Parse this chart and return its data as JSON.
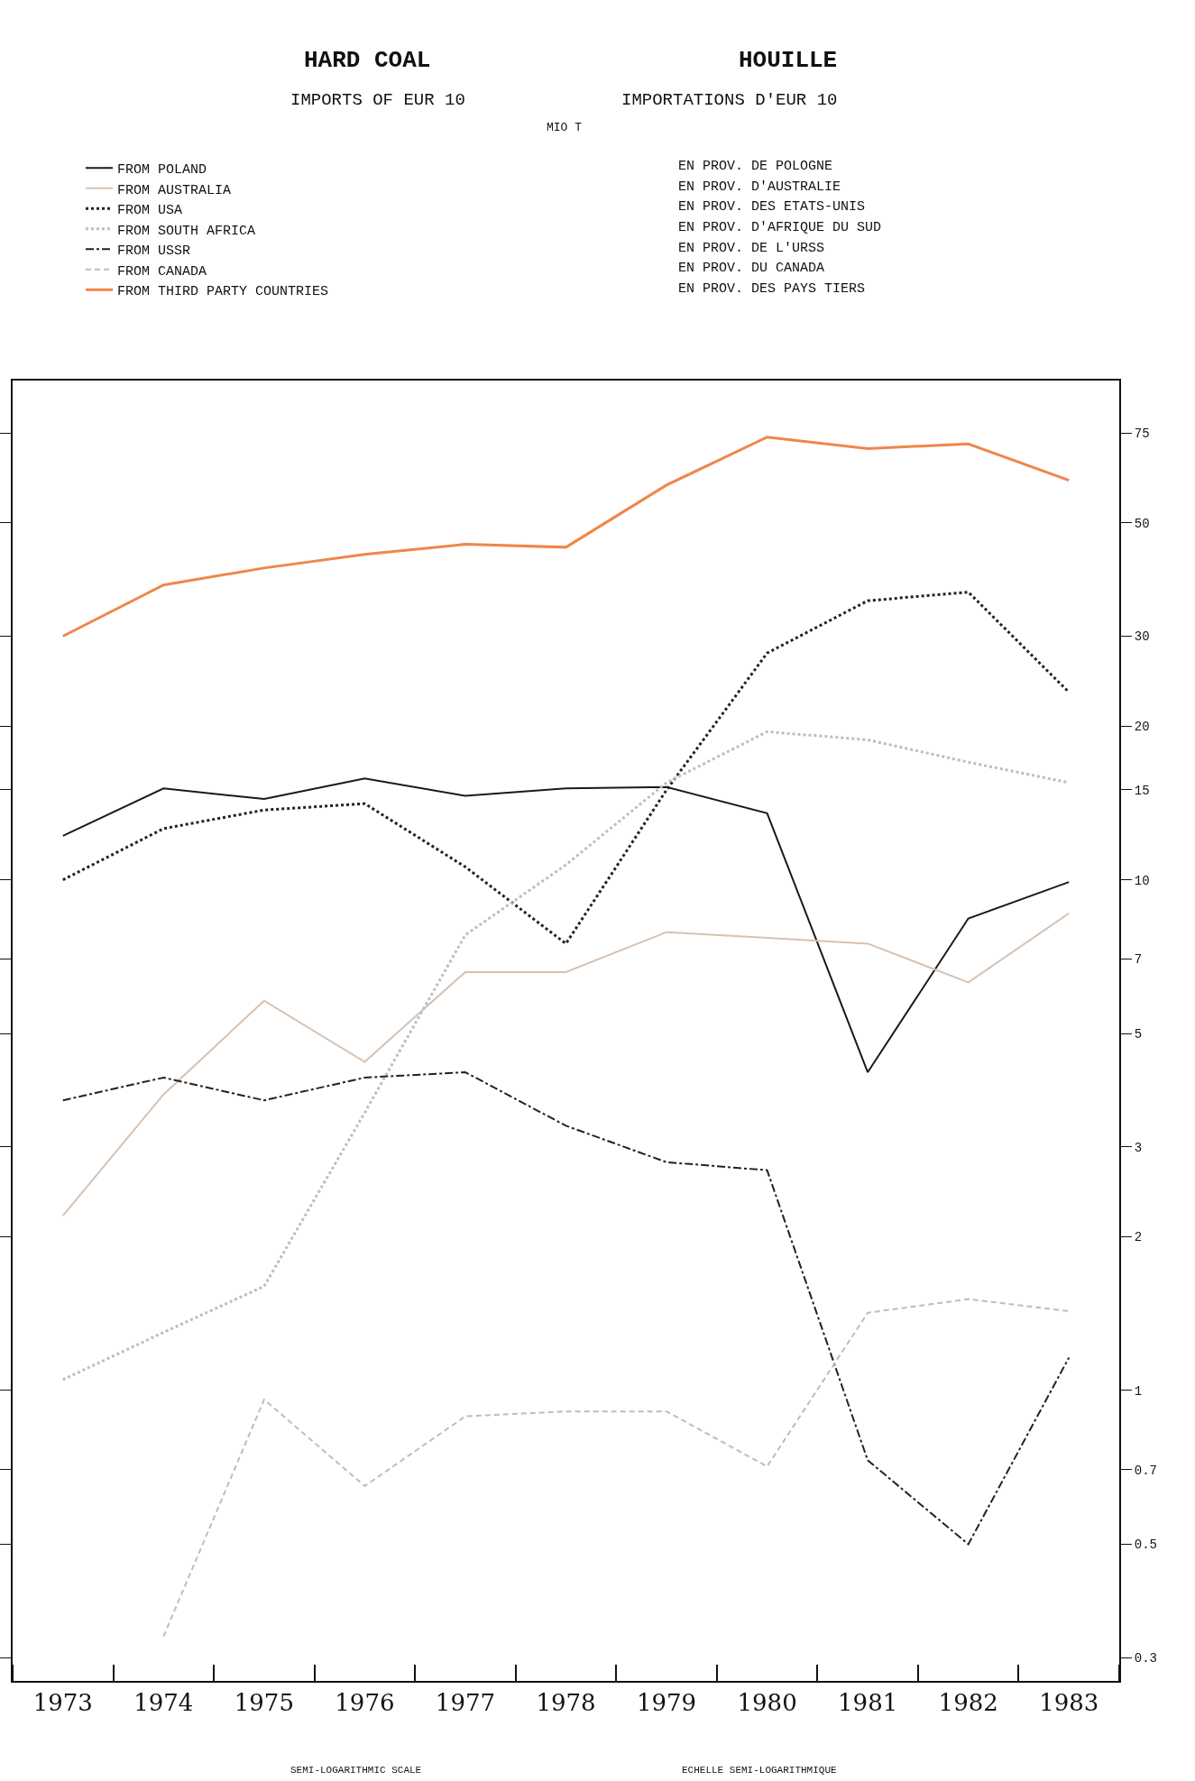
{
  "chart_data": {
    "type": "line",
    "title": "HARD COAL",
    "subtitle": "IMPORTS OF EUR 10",
    "x": [
      1973,
      1974,
      1975,
      1976,
      1977,
      1978,
      1979,
      1980,
      1981,
      1982,
      1983
    ],
    "series": [
      {
        "name": "FROM POLAND",
        "color": "#1a1a1a",
        "line_style": "solid",
        "values": [
          12.2,
          15.1,
          14.4,
          15.8,
          14.6,
          15.1,
          15.2,
          13.5,
          4.2,
          8.4,
          9.9
        ]
      },
      {
        "name": "FROM AUSTRALIA",
        "color": "#d6c2b2",
        "line_style": "solid",
        "values": [
          2.2,
          3.8,
          5.8,
          4.4,
          6.6,
          6.6,
          7.9,
          7.7,
          7.5,
          6.3,
          8.6
        ]
      },
      {
        "name": "FROM USA",
        "color": "#222222",
        "line_style": "dotted",
        "values": [
          10.0,
          12.6,
          13.7,
          14.1,
          10.6,
          7.5,
          15.0,
          27.8,
          35.2,
          36.6,
          23.3
        ]
      },
      {
        "name": "FROM SOUTH AFRICA",
        "color": "#bdbdbd",
        "line_style": "dotted",
        "values": [
          1.05,
          1.3,
          1.6,
          3.5,
          7.8,
          10.7,
          15.5,
          19.5,
          18.8,
          17.0,
          15.5
        ]
      },
      {
        "name": "FROM USSR",
        "color": "#222222",
        "line_style": "dashdot",
        "values": [
          3.7,
          4.1,
          3.7,
          4.1,
          4.2,
          3.3,
          2.8,
          2.7,
          0.73,
          0.5,
          1.16
        ]
      },
      {
        "name": "FROM CANADA",
        "color": "#bdbdbd",
        "line_style": "dashed",
        "values": [
          null,
          0.33,
          0.96,
          0.65,
          0.89,
          0.91,
          0.91,
          0.71,
          1.42,
          1.51,
          1.43
        ]
      },
      {
        "name": "FROM THIRD PARTY COUNTRIES",
        "color": "#f0864a",
        "line_style": "solid",
        "values": [
          30,
          37.8,
          40.8,
          43.4,
          45.4,
          44.8,
          59.3,
          73.6,
          69.9,
          71.4,
          60.6
        ]
      }
    ],
    "log": "y",
    "xlim": [
      1972.5,
      1983.5
    ],
    "ylim": [
      0.27,
      95
    ],
    "xticks": [
      1973,
      1974,
      1975,
      1976,
      1977,
      1978,
      1979,
      1980,
      1981,
      1982,
      1983
    ],
    "yticks": [
      0.3,
      0.5,
      0.7,
      1,
      2,
      3,
      5,
      7,
      10,
      15,
      20,
      30,
      50,
      75
    ],
    "legend": "top left",
    "annotations": [
      "HOUILLE",
      "IMPORTATIONS D'EUR 10",
      "EN PROV. DE POLOGNE",
      "EN PROV. D'AUSTRALIE",
      "EN PROV. DES ETATS-UNIS",
      "EN PROV. D'AFRIQUE DU SUD",
      "EN PROV. DE L'URSS",
      "EN PROV. DU CANADA",
      "EN PROV. DES PAYS TIERS",
      "SEMI-LOGARITHMIC SCALE",
      "ECHELLE SEMI-LOGARITHMIQUE",
      "MIO T"
    ]
  }
}
